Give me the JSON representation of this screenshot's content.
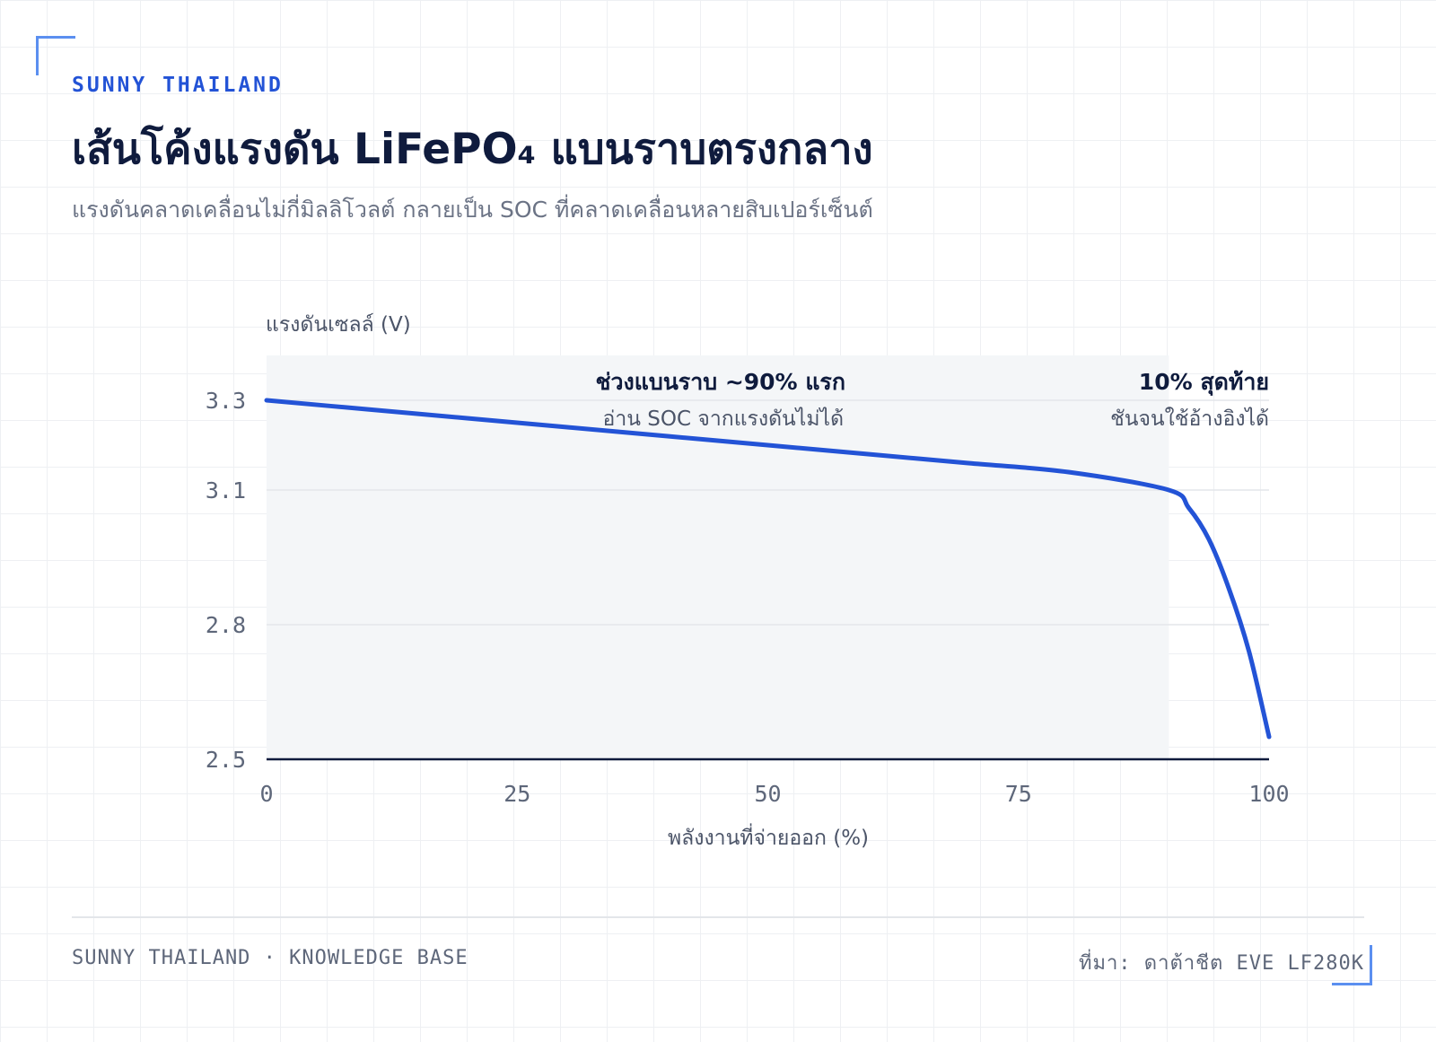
{
  "header": {
    "brand": "SUNNY THAILAND",
    "title": "เส้นโค้งแรงดัน LiFePO₄ แบนราบตรงกลาง",
    "subtitle": "แรงดันคลาดเคลื่อนไม่กี่มิลลิโวลต์ กลายเป็น SOC ที่คลาดเคลื่อนหลายสิบเปอร์เซ็นต์"
  },
  "chart_data": {
    "type": "line",
    "ylabel": "แรงดันเซลล์ (V)",
    "xlabel": "พลังงานที่จ่ายออก (%)",
    "xlim": [
      0,
      100
    ],
    "ylim": [
      2.5,
      3.3
    ],
    "y_ticks": [
      "3.3",
      "3.1",
      "2.8",
      "2.5"
    ],
    "x_ticks": [
      "0",
      "25",
      "50",
      "75",
      "100"
    ],
    "grid": "horizontal",
    "shaded_region": {
      "x": [
        0,
        90
      ],
      "color": "#f4f6f8"
    },
    "series": [
      {
        "color": "#2353d6",
        "x": [
          0,
          10,
          20,
          30,
          40,
          50,
          60,
          70,
          80,
          90,
          92,
          94,
          96,
          98,
          100
        ],
        "y": [
          3.3,
          3.28,
          3.26,
          3.24,
          3.22,
          3.2,
          3.18,
          3.16,
          3.14,
          3.1,
          3.06,
          2.99,
          2.88,
          2.74,
          2.55
        ]
      }
    ],
    "annotations": [
      {
        "title": "ช่วงแบนราบ ~90% แรก",
        "subtitle": "อ่าน SOC จากแรงดันไม่ได้"
      },
      {
        "title": "10% สุดท้าย",
        "subtitle": "ชันจนใช้อ้างอิงได้"
      }
    ]
  },
  "footer": {
    "left": "SUNNY THAILAND · KNOWLEDGE BASE",
    "right": "ที่มา: ดาต้าชีต EVE LF280K"
  }
}
